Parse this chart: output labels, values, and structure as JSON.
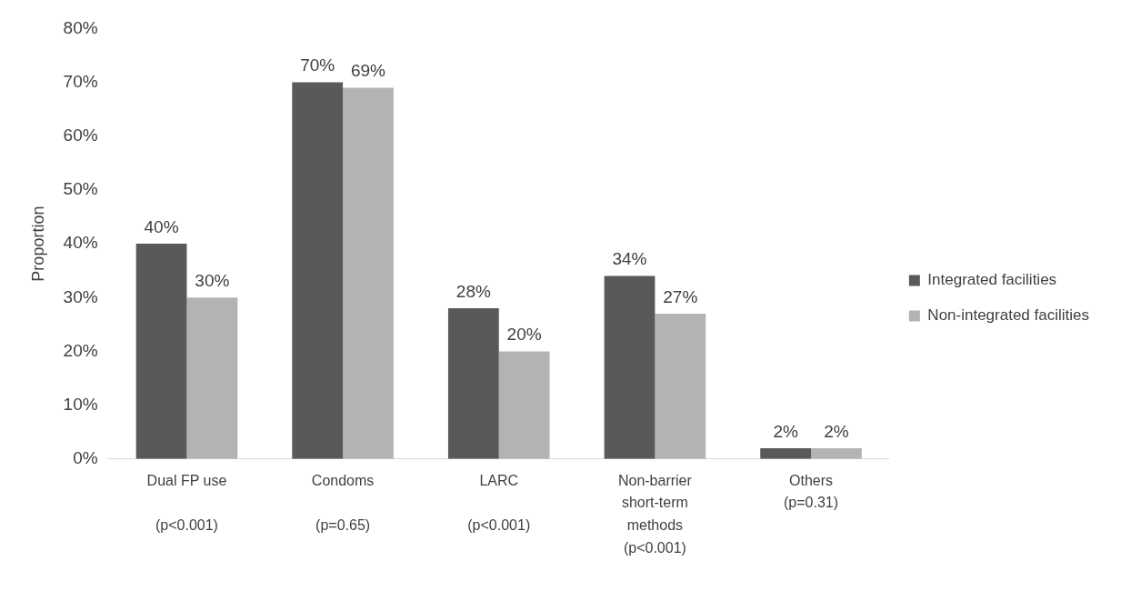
{
  "chart_data": {
    "type": "bar",
    "ylabel": "Proportion",
    "categories": [
      "Dual FP use\n\n(p<0.001)",
      "Condoms\n\n(p=0.65)",
      "LARC\n\n(p<0.001)",
      "Non-barrier\nshort-term\nmethods\n(p<0.001)",
      "Others\n(p=0.31)"
    ],
    "series": [
      {
        "name": "Integrated facilities",
        "color": "#595959",
        "values": [
          40,
          70,
          28,
          34,
          2
        ],
        "value_labels": [
          "40%",
          "70%",
          "28%",
          "34%",
          "2%"
        ]
      },
      {
        "name": "Non-integrated facilities",
        "color": "#b3b3b3",
        "values": [
          30,
          69,
          20,
          27,
          2
        ],
        "value_labels": [
          "30%",
          "69%",
          "20%",
          "27%",
          "2%"
        ]
      }
    ],
    "ylim": [
      0,
      80
    ],
    "yticks": [
      {
        "value": 0,
        "label": "0%"
      },
      {
        "value": 10,
        "label": "10%"
      },
      {
        "value": 20,
        "label": "20%"
      },
      {
        "value": 30,
        "label": "30%"
      },
      {
        "value": 40,
        "label": "40%"
      },
      {
        "value": 50,
        "label": "50%"
      },
      {
        "value": 60,
        "label": "60%"
      },
      {
        "value": 70,
        "label": "70%"
      },
      {
        "value": 80,
        "label": "80%"
      }
    ],
    "grid": false,
    "legend": "right"
  }
}
